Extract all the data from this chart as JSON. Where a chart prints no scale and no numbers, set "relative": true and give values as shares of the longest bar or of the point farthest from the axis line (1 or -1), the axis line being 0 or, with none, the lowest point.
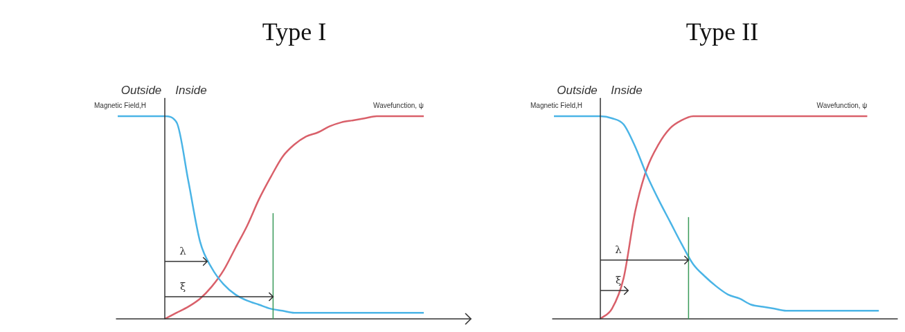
{
  "chart_data": [
    {
      "type": "line",
      "title": "Type I",
      "relative": true,
      "marker": "none",
      "categories": [
        null,
        null,
        null,
        null,
        null,
        null,
        null,
        null,
        null,
        null,
        null,
        null,
        null,
        null,
        null,
        null,
        null,
        null,
        null,
        null,
        null,
        null,
        null,
        null,
        null,
        null,
        null,
        null,
        null,
        null,
        null
      ],
      "series": [
        {
          "name": "Magnetic Field,H",
          "color": "#4ab4e6",
          "values": [
            1,
            1,
            1,
            1,
            1,
            0.97,
            0.68,
            0.38,
            0.25,
            0.17,
            0.12,
            0.09,
            0.07,
            0.05,
            0.04,
            0.03,
            0.03,
            0.03,
            0.03,
            0.03,
            0.03,
            0.03,
            0.03,
            0.03,
            0.03,
            0.03,
            0.03,
            null,
            null,
            null,
            null
          ]
        },
        {
          "name": "Wavefunction, ψ",
          "color": "#d9606a",
          "values": [
            null,
            null,
            null,
            null,
            0,
            0.03,
            0.06,
            0.1,
            0.16,
            0.24,
            0.35,
            0.46,
            0.59,
            0.7,
            0.8,
            0.86,
            0.9,
            0.92,
            0.95,
            0.97,
            0.98,
            0.99,
            1,
            1,
            1,
            1,
            1,
            null,
            null,
            null,
            null
          ]
        }
      ],
      "annotations": [
        "Outside",
        "Inside",
        "λ",
        "ξ"
      ]
    },
    {
      "type": "line",
      "title": "Type II",
      "relative": true,
      "marker": "none",
      "categories": [
        null,
        null,
        null,
        null,
        null,
        null,
        null,
        null,
        null,
        null,
        null,
        null,
        null,
        null,
        null,
        null,
        null,
        null,
        null,
        null,
        null,
        null,
        null,
        null,
        null,
        null,
        null,
        null,
        null,
        null
      ],
      "series": [
        {
          "name": "Magnetic Field,H",
          "color": "#4ab4e6",
          "values": [
            1,
            1,
            1,
            1,
            1,
            0.99,
            0.96,
            0.85,
            0.71,
            0.59,
            0.48,
            0.37,
            0.27,
            0.21,
            0.16,
            0.12,
            0.1,
            0.07,
            0.06,
            0.05,
            0.04,
            0.04,
            0.04,
            0.04,
            0.04,
            0.04,
            0.04,
            0.04,
            0.04,
            null
          ]
        },
        {
          "name": "Wavefunction, ψ",
          "color": "#d9606a",
          "values": [
            null,
            null,
            null,
            null,
            0,
            0.05,
            0.2,
            0.53,
            0.74,
            0.86,
            0.94,
            0.98,
            1,
            1,
            1,
            1,
            1,
            1,
            1,
            1,
            1,
            1,
            1,
            1,
            1,
            1,
            1,
            1,
            null,
            null
          ]
        }
      ],
      "annotations": [
        "Outside",
        "Inside",
        "λ",
        "ξ"
      ]
    }
  ]
}
